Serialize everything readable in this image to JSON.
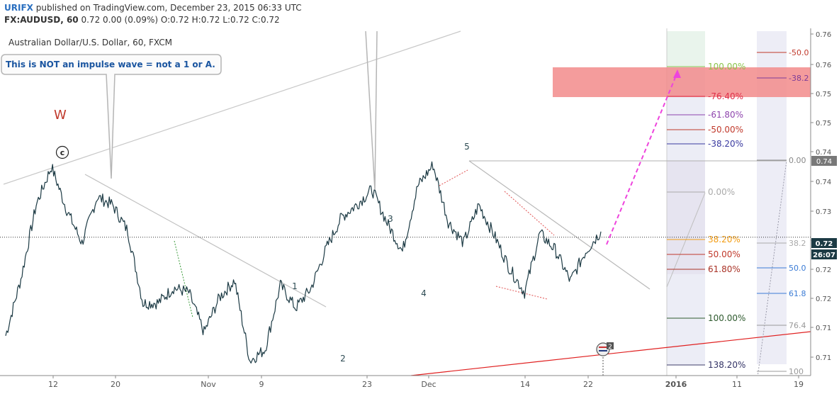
{
  "header": {
    "publisher": "URIFX",
    "published_text": "published on TradingView.com, December 23, 2015 06:33 UTC",
    "symbol": "FX:AUDUSD, 60",
    "quote": "0.72 0.00 (0.09%) O:0.72 H:0.72 L:0.72 C:0.72"
  },
  "chart_data": {
    "type": "line",
    "title": "Australian Dollar/U.S. Dollar, 60, FXCM",
    "note": "This is NOT an impulse wave = not a 1 or A.",
    "wave_labels": {
      "w": "W",
      "c": "c",
      "waves": [
        "1",
        "2",
        "3",
        "4",
        "5"
      ]
    },
    "x_ticks": [
      "12",
      "20",
      "Nov",
      "9",
      "23",
      "Dec",
      "14",
      "22",
      "2016",
      "11",
      "19"
    ],
    "y_ticks": [
      "0.76",
      "0.76",
      "0.75",
      "0.75",
      "0.74",
      "0.74",
      "0.73",
      "0.73",
      "0.72",
      "0.72",
      "0.71",
      "0.71"
    ],
    "ylim": [
      0.7035,
      0.7645
    ],
    "price": {
      "label": "0.72",
      "timer": "26:07",
      "value": 0.7278
    },
    "series": [
      {
        "values": [
          0.7105,
          0.7205,
          0.7335,
          0.7402,
          0.7326,
          0.7268,
          0.7349,
          0.7335,
          0.7289,
          0.7162,
          0.7163,
          0.7189,
          0.7181,
          0.7111,
          0.7172,
          0.7202,
          0.7061,
          0.7081,
          0.7194,
          0.7154,
          0.7188,
          0.7258,
          0.7313,
          0.7335,
          0.7362,
          0.7303,
          0.7253,
          0.7368,
          0.7405,
          0.7305,
          0.7268,
          0.7335,
          0.7282,
          0.7224,
          0.7181,
          0.7285,
          0.7256,
          0.7201,
          0.7253,
          0.7288
        ]
      }
    ],
    "fib_left": {
      "levels": [
        "100.00%",
        "-76.40%",
        "-61.80%",
        "-50.00%",
        "-38.20%",
        "0.00%",
        "38.20%",
        "50.00%",
        "61.80%",
        "100.00%",
        "138.20%"
      ]
    },
    "fib_right": {
      "levels": [
        "-50.0",
        "-38.2",
        "0.00",
        "38.2",
        "50.0",
        "61.8",
        "76.4",
        "100"
      ],
      "price_tag": "0.74"
    },
    "event_badge": "2",
    "colors": {
      "price_line": "#1c3a44",
      "target_zone": "#f28b8b",
      "projection": "#ee44dd",
      "trend_support": "#e02020",
      "wave_w": "#c0392b",
      "note_text": "#1a55a0"
    }
  }
}
